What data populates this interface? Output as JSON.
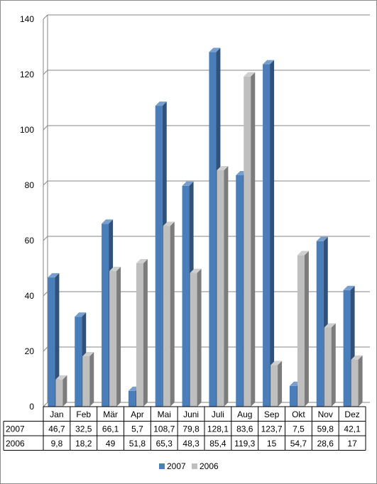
{
  "chart_data": {
    "type": "bar",
    "categories": [
      "Jan",
      "Feb",
      "Mär",
      "Apr",
      "Mai",
      "Juni",
      "Juli",
      "Aug",
      "Sep",
      "Okt",
      "Nov",
      "Dez"
    ],
    "series": [
      {
        "name": "2007",
        "color": "#4a7ebb",
        "values": [
          46.7,
          32.5,
          66.1,
          5.7,
          108.7,
          79.8,
          128.1,
          83.6,
          123.7,
          7.5,
          59.8,
          42.1
        ],
        "labels": [
          "46,7",
          "32,5",
          "66,1",
          "5,7",
          "108,7",
          "79,8",
          "128,1",
          "83,6",
          "123,7",
          "7,5",
          "59,8",
          "42,1"
        ]
      },
      {
        "name": "2006",
        "color": "#bfbfbf",
        "values": [
          9.8,
          18.2,
          49,
          51.8,
          65.3,
          48.3,
          85.4,
          119.3,
          15,
          54.7,
          28.6,
          17
        ],
        "labels": [
          "9,8",
          "18,2",
          "49",
          "51,8",
          "65,3",
          "48,3",
          "85,4",
          "119,3",
          "15",
          "54,7",
          "28,6",
          "17"
        ]
      }
    ],
    "ylim": [
      0,
      140
    ],
    "yticks": [
      0,
      20,
      40,
      60,
      80,
      100,
      120,
      140
    ],
    "grid": true,
    "legend": "bottom",
    "data_table": true
  }
}
